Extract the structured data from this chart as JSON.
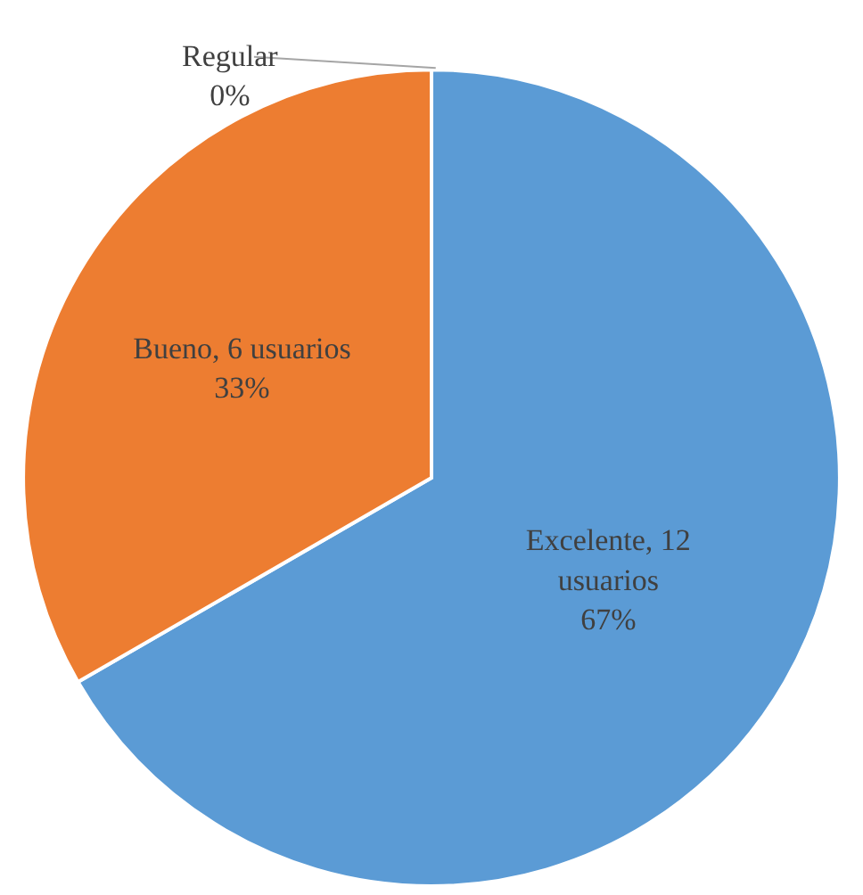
{
  "chart_data": {
    "type": "pie",
    "categories": [
      "Excelente",
      "Bueno",
      "Regular"
    ],
    "values": [
      12,
      6,
      0
    ],
    "colors": [
      "#5b9bd5",
      "#ed7d31",
      "#a5a5a5"
    ],
    "value_labels": [
      "12\nusuarios\n67%",
      "6 usuarios\n33%",
      "0%"
    ],
    "legend": false
  }
}
